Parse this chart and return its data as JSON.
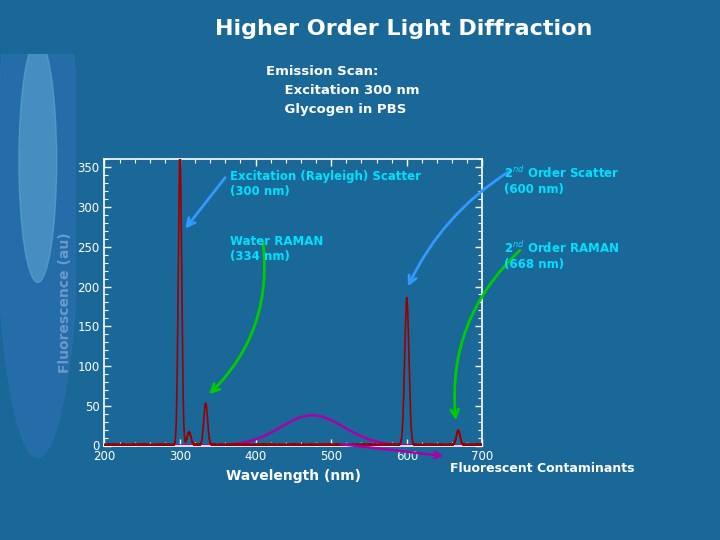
{
  "title": "Higher Order Light Diffraction",
  "subtitle_line1": "Emission Scan:",
  "subtitle_line2": "    Excitation 300 nm",
  "subtitle_line3": "    Glycogen in PBS",
  "xlabel": "Wavelength (nm)",
  "ylabel": "Fluorescence (au)",
  "bg_color": "#1a6898",
  "plot_bg_color": "#1a6898",
  "title_color": "#ffffff",
  "xlabel_color": "#ffffff",
  "ylabel_color": "#ffffff",
  "xlim": [
    200,
    700
  ],
  "ylim": [
    0,
    360
  ],
  "xticks": [
    200,
    300,
    400,
    500,
    600,
    700
  ],
  "yticks": [
    0,
    50,
    100,
    150,
    200,
    250,
    300,
    350
  ],
  "fluorescent_contaminants_text": "Fluorescent Contaminants",
  "rayleigh_peak": 300,
  "rayleigh_amp": 370,
  "rayleigh_sigma": 2.2,
  "raman_peak": 334,
  "raman_amp": 52,
  "raman_sigma": 2.5,
  "bump_peak": 312,
  "bump_amp": 16,
  "bump_sigma": 2.5,
  "scatter2_peak": 600,
  "scatter2_amp": 185,
  "scatter2_sigma": 2.8,
  "raman2_peak": 668,
  "raman2_amp": 18,
  "raman2_sigma": 2.5,
  "contam_peak": 475,
  "contam_amp": 38,
  "contam_sigma": 42,
  "annotation_color": "#00e0ff",
  "arrow_color_blue": "#3399ff",
  "arrow_color_green": "#00cc00",
  "red_color": "#990000",
  "magenta_color": "#aa00aa",
  "tick_color": "#ffffff",
  "spine_color": "#ffffff"
}
